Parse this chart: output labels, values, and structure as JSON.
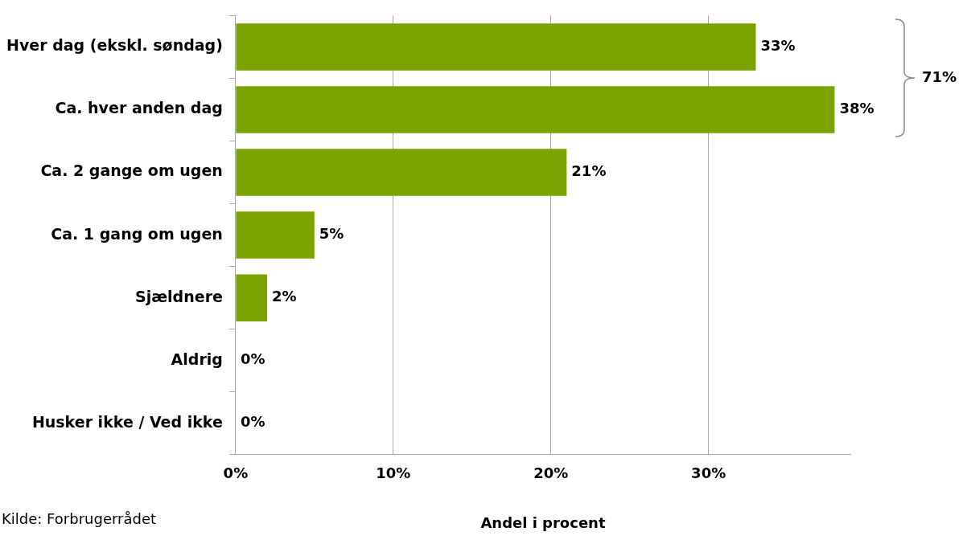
{
  "chart_data": {
    "type": "bar",
    "orientation": "horizontal",
    "xlabel": "Andel i procent",
    "categories": [
      "Hver dag (ekskl. søndag)",
      "Ca. hver anden dag",
      "Ca. 2 gange om ugen",
      "Ca. 1 gang om ugen",
      "Sjældnere",
      "Aldrig",
      "Husker ikke / Ved ikke"
    ],
    "values": [
      33,
      38,
      21,
      5,
      2,
      0,
      0
    ],
    "color": "#7aa300",
    "value_labels": [
      "33%",
      "38%",
      "21%",
      "5%",
      "2%",
      "0%",
      "0%"
    ],
    "xlim": [
      0,
      39
    ],
    "xticks": [
      {
        "value": 0,
        "label": "0%"
      },
      {
        "value": 10,
        "label": "10%"
      },
      {
        "value": 20,
        "label": "20%"
      },
      {
        "value": 30,
        "label": "30%"
      }
    ],
    "grid": "x",
    "legend": false,
    "annotations": [
      "Kilde: Forbrugerrådet",
      "71%"
    ]
  }
}
